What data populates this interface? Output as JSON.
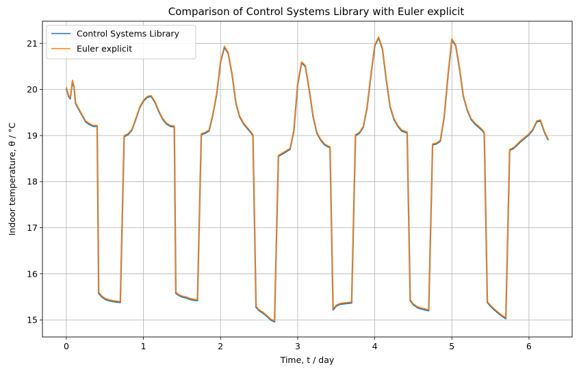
{
  "chart_data": {
    "type": "line",
    "title": "Comparison  of Control Systems Library with Euler explicit",
    "xlabel": "Time, t / day",
    "ylabel": "Indoor temperature, θ / °C",
    "xlim": [
      -0.31,
      6.56
    ],
    "ylim": [
      14.63,
      21.48
    ],
    "xticks": [
      0,
      1,
      2,
      3,
      4,
      5,
      6
    ],
    "yticks": [
      15,
      16,
      17,
      18,
      19,
      20,
      21
    ],
    "grid": true,
    "legend": "top-left",
    "series": [
      {
        "name": "Control Systems Library",
        "color": "#1f77b4",
        "x": [
          0,
          0.03,
          0.05,
          0.08,
          0.1,
          0.12,
          0.15,
          0.2,
          0.25,
          0.3,
          0.35,
          0.4,
          0.42,
          0.46,
          0.5,
          0.55,
          0.6,
          0.65,
          0.7,
          0.75,
          0.8,
          0.85,
          0.9,
          0.95,
          1.0,
          1.05,
          1.1,
          1.15,
          1.2,
          1.25,
          1.3,
          1.35,
          1.4,
          1.42,
          1.46,
          1.5,
          1.55,
          1.6,
          1.65,
          1.7,
          1.75,
          1.8,
          1.85,
          1.9,
          1.95,
          2.0,
          2.05,
          2.1,
          2.15,
          2.2,
          2.25,
          2.3,
          2.35,
          2.4,
          2.42,
          2.46,
          2.5,
          2.55,
          2.6,
          2.65,
          2.7,
          2.75,
          2.8,
          2.85,
          2.9,
          2.95,
          3.0,
          3.05,
          3.1,
          3.15,
          3.2,
          3.25,
          3.3,
          3.35,
          3.4,
          3.42,
          3.46,
          3.5,
          3.55,
          3.6,
          3.65,
          3.7,
          3.75,
          3.8,
          3.85,
          3.9,
          3.95,
          4.0,
          4.05,
          4.1,
          4.15,
          4.2,
          4.25,
          4.3,
          4.35,
          4.4,
          4.42,
          4.46,
          4.5,
          4.55,
          4.6,
          4.65,
          4.7,
          4.75,
          4.8,
          4.85,
          4.9,
          4.95,
          5.0,
          5.05,
          5.1,
          5.15,
          5.2,
          5.25,
          5.3,
          5.35,
          5.4,
          5.42,
          5.46,
          5.5,
          5.55,
          5.6,
          5.65,
          5.7,
          5.75,
          5.8,
          5.85,
          5.9,
          5.95,
          6.0,
          6.05,
          6.1,
          6.15,
          6.2,
          6.25
        ],
        "y": [
          20.03,
          19.85,
          19.8,
          20.18,
          20.05,
          19.7,
          19.6,
          19.45,
          19.3,
          19.24,
          19.2,
          19.2,
          15.58,
          15.5,
          15.45,
          15.42,
          15.4,
          15.39,
          15.38,
          18.98,
          19.02,
          19.12,
          19.35,
          19.6,
          19.75,
          19.83,
          19.85,
          19.72,
          19.52,
          19.35,
          19.25,
          19.2,
          19.19,
          15.58,
          15.53,
          15.5,
          15.48,
          15.45,
          15.43,
          15.42,
          19.02,
          19.05,
          19.1,
          19.45,
          19.9,
          20.6,
          20.92,
          20.78,
          20.32,
          19.7,
          19.4,
          19.25,
          19.15,
          19.05,
          19.0,
          15.28,
          15.2,
          15.15,
          15.08,
          15.0,
          14.96,
          18.55,
          18.6,
          18.65,
          18.7,
          19.1,
          20.1,
          20.58,
          20.5,
          20.0,
          19.42,
          19.05,
          18.9,
          18.8,
          18.75,
          18.74,
          15.22,
          15.3,
          15.34,
          15.35,
          15.36,
          15.37,
          19.0,
          19.05,
          19.18,
          19.6,
          20.3,
          20.95,
          21.12,
          20.88,
          20.2,
          19.62,
          19.35,
          19.2,
          19.1,
          19.07,
          19.06,
          15.42,
          15.33,
          15.27,
          15.24,
          15.22,
          15.2,
          18.8,
          18.82,
          18.88,
          19.4,
          20.3,
          21.08,
          20.95,
          20.45,
          19.85,
          19.55,
          19.35,
          19.25,
          19.18,
          19.1,
          19.05,
          15.38,
          15.3,
          15.22,
          15.15,
          15.08,
          15.03,
          18.68,
          18.72,
          18.8,
          18.88,
          18.95,
          19.02,
          19.12,
          19.3,
          19.32,
          19.08,
          18.9
        ]
      },
      {
        "name": "Euler explicit",
        "color": "#ff7f0e",
        "x": [
          0,
          0.03,
          0.05,
          0.08,
          0.1,
          0.12,
          0.15,
          0.2,
          0.25,
          0.3,
          0.35,
          0.4,
          0.42,
          0.46,
          0.5,
          0.55,
          0.6,
          0.65,
          0.7,
          0.75,
          0.8,
          0.85,
          0.9,
          0.95,
          1.0,
          1.05,
          1.1,
          1.15,
          1.2,
          1.25,
          1.3,
          1.35,
          1.4,
          1.42,
          1.46,
          1.5,
          1.55,
          1.6,
          1.65,
          1.7,
          1.75,
          1.8,
          1.85,
          1.9,
          1.95,
          2.0,
          2.05,
          2.1,
          2.15,
          2.2,
          2.25,
          2.3,
          2.35,
          2.4,
          2.42,
          2.46,
          2.5,
          2.55,
          2.6,
          2.65,
          2.7,
          2.75,
          2.8,
          2.85,
          2.9,
          2.95,
          3.0,
          3.05,
          3.1,
          3.15,
          3.2,
          3.25,
          3.3,
          3.35,
          3.4,
          3.42,
          3.46,
          3.5,
          3.55,
          3.6,
          3.65,
          3.7,
          3.75,
          3.8,
          3.85,
          3.9,
          3.95,
          4.0,
          4.05,
          4.1,
          4.15,
          4.2,
          4.25,
          4.3,
          4.35,
          4.4,
          4.42,
          4.46,
          4.5,
          4.55,
          4.6,
          4.65,
          4.7,
          4.75,
          4.8,
          4.85,
          4.9,
          4.95,
          5.0,
          5.05,
          5.1,
          5.15,
          5.2,
          5.25,
          5.3,
          5.35,
          5.4,
          5.42,
          5.46,
          5.5,
          5.55,
          5.6,
          5.65,
          5.7,
          5.75,
          5.8,
          5.85,
          5.9,
          5.95,
          6.0,
          6.05,
          6.1,
          6.15,
          6.2,
          6.25
        ],
        "y": [
          20.05,
          19.87,
          19.82,
          20.2,
          20.07,
          19.72,
          19.62,
          19.47,
          19.32,
          19.26,
          19.22,
          19.22,
          15.6,
          15.52,
          15.47,
          15.44,
          15.42,
          15.41,
          15.4,
          19.0,
          19.04,
          19.14,
          19.37,
          19.62,
          19.77,
          19.85,
          19.87,
          19.74,
          19.54,
          19.37,
          19.27,
          19.22,
          19.21,
          15.6,
          15.55,
          15.52,
          15.5,
          15.47,
          15.45,
          15.44,
          19.04,
          19.07,
          19.12,
          19.47,
          19.92,
          20.62,
          20.94,
          20.8,
          20.34,
          19.72,
          19.42,
          19.27,
          19.17,
          19.07,
          19.02,
          15.3,
          15.22,
          15.17,
          15.1,
          15.02,
          14.98,
          18.57,
          18.62,
          18.67,
          18.72,
          19.12,
          20.12,
          20.6,
          20.52,
          20.02,
          19.44,
          19.07,
          18.92,
          18.82,
          18.77,
          18.76,
          15.24,
          15.32,
          15.36,
          15.37,
          15.38,
          15.39,
          19.02,
          19.07,
          19.2,
          19.62,
          20.32,
          20.97,
          21.14,
          20.9,
          20.22,
          19.64,
          19.37,
          19.22,
          19.12,
          19.09,
          19.08,
          15.44,
          15.35,
          15.29,
          15.26,
          15.24,
          15.22,
          18.82,
          18.84,
          18.9,
          19.42,
          20.32,
          21.1,
          20.97,
          20.47,
          19.87,
          19.57,
          19.37,
          19.27,
          19.2,
          19.12,
          19.07,
          15.4,
          15.32,
          15.24,
          15.17,
          15.1,
          15.05,
          18.7,
          18.74,
          18.82,
          18.9,
          18.97,
          19.04,
          19.14,
          19.32,
          19.34,
          19.1,
          18.92
        ]
      }
    ]
  }
}
